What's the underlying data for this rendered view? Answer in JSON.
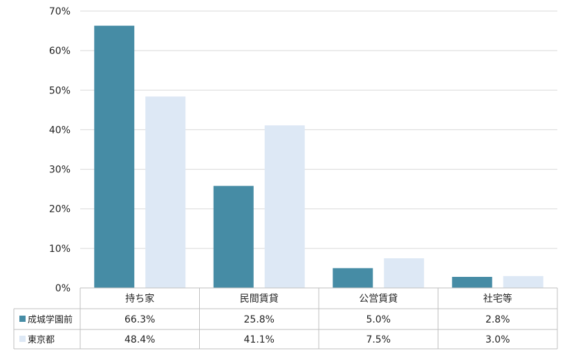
{
  "chart_data": {
    "type": "bar",
    "categories": [
      "持ち家",
      "民間賃貸",
      "公営賃貸",
      "社宅等"
    ],
    "series": [
      {
        "name": "成城学園前",
        "values": [
          66.3,
          25.8,
          5.0,
          2.8
        ],
        "labels": [
          "66.3%",
          "25.8%",
          "5.0%",
          "2.8%"
        ],
        "color": "#468ca5"
      },
      {
        "name": "東京都",
        "values": [
          48.4,
          41.1,
          7.5,
          3.0
        ],
        "labels": [
          "48.4%",
          "41.1%",
          "7.5%",
          "3.0%"
        ],
        "color": "#dde8f5"
      }
    ],
    "ylim": [
      0,
      70
    ],
    "yticks": [
      0,
      10,
      20,
      30,
      40,
      50,
      60,
      70
    ],
    "ytick_labels": [
      "0%",
      "10%",
      "20%",
      "30%",
      "40%",
      "50%",
      "60%",
      "70%"
    ],
    "grid": true,
    "legend": "data-table"
  },
  "colors": {
    "grid": "#d9d9d9",
    "table_border": "#bfbfbf",
    "axis": "#bfbfbf"
  }
}
